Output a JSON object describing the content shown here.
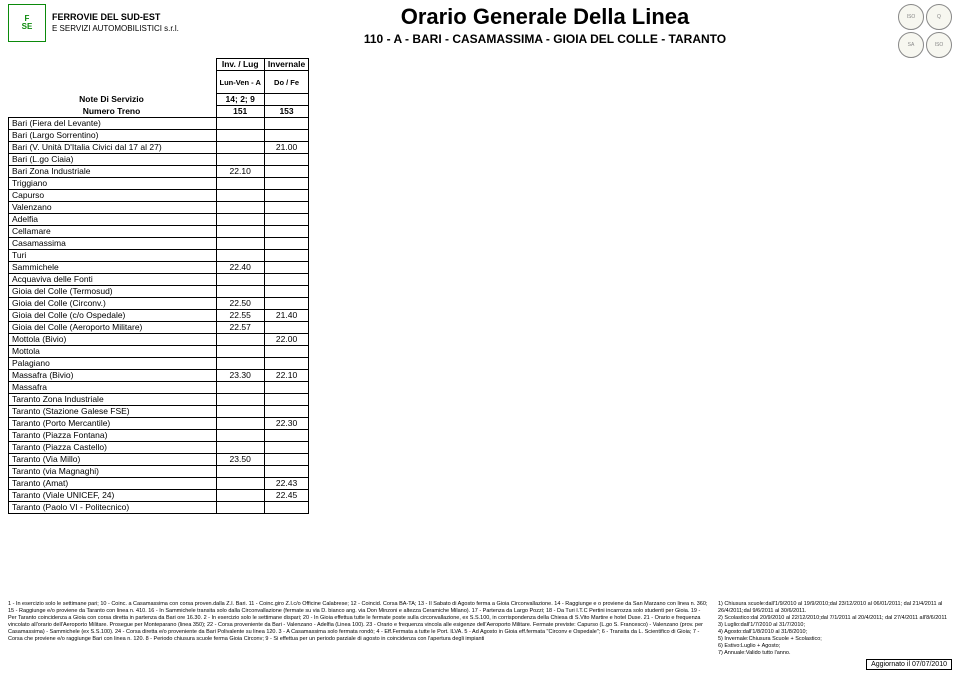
{
  "brand": {
    "name_line1": "FERROVIE DEL SUD-EST",
    "name_line2": "E SERVIZI AUTOMOBILISTICI s.r.l.",
    "badge_top": "F",
    "badge_bottom": "SE"
  },
  "title": {
    "main": "Orario Generale Della Linea",
    "sub": "110 - A - BARI - CASAMASSIMA - GIOIA DEL COLLE - TARANTO"
  },
  "header_rows": {
    "row1": {
      "left": "",
      "c1": "Inv. / Lug",
      "c2": "Invernale"
    },
    "row2": {
      "left": "",
      "c1": "Lun-Ven - A",
      "c2": "Do / Fe"
    },
    "row3": {
      "left": "Note Di Servizio",
      "c1": "14; 2; 9",
      "c2": ""
    },
    "row4": {
      "left": "Numero Treno",
      "c1": "151",
      "c2": "153"
    }
  },
  "stops": [
    {
      "name": "Bari  (Fiera del Levante)",
      "t1": "",
      "t2": ""
    },
    {
      "name": "Bari  (Largo Sorrentino)",
      "t1": "",
      "t2": ""
    },
    {
      "name": "Bari  (V. Unità D'Italia Civici dal 17 al 27)",
      "t1": "",
      "t2": "21.00"
    },
    {
      "name": "Bari  (L.go Ciaia)",
      "t1": "",
      "t2": ""
    },
    {
      "name": "Bari  Zona Industriale",
      "t1": "22.10",
      "t2": ""
    },
    {
      "name": "Triggiano",
      "t1": "",
      "t2": ""
    },
    {
      "name": "Capurso",
      "t1": "",
      "t2": ""
    },
    {
      "name": "Valenzano",
      "t1": "",
      "t2": ""
    },
    {
      "name": "Adelfia",
      "t1": "",
      "t2": ""
    },
    {
      "name": "Cellamare",
      "t1": "",
      "t2": ""
    },
    {
      "name": "Casamassima",
      "t1": "",
      "t2": ""
    },
    {
      "name": "Turi",
      "t1": "",
      "t2": ""
    },
    {
      "name": "Sammichele",
      "t1": "22.40",
      "t2": ""
    },
    {
      "name": "Acquaviva delle Fonti",
      "t1": "",
      "t2": ""
    },
    {
      "name": "Gioia del Colle  (Termosud)",
      "t1": "",
      "t2": ""
    },
    {
      "name": "Gioia del Colle  (Circonv.)",
      "t1": "22.50",
      "t2": ""
    },
    {
      "name": "Gioia del Colle  (c/o Ospedale)",
      "t1": "22.55",
      "t2": "21.40"
    },
    {
      "name": "Gioia del Colle  (Aeroporto Militare)",
      "t1": "22.57",
      "t2": ""
    },
    {
      "name": "Mottola  (Bivio)",
      "t1": "",
      "t2": "22.00"
    },
    {
      "name": "Mottola",
      "t1": "",
      "t2": ""
    },
    {
      "name": "Palagiano",
      "t1": "",
      "t2": ""
    },
    {
      "name": "Massafra  (Bivio)",
      "t1": "23.30",
      "t2": "22.10"
    },
    {
      "name": "Massafra",
      "t1": "",
      "t2": ""
    },
    {
      "name": "Taranto Zona Industriale",
      "t1": "",
      "t2": ""
    },
    {
      "name": "Taranto  (Stazione Galese FSE)",
      "t1": "",
      "t2": ""
    },
    {
      "name": "Taranto  (Porto Mercantile)",
      "t1": "",
      "t2": "22.30"
    },
    {
      "name": "Taranto  (Piazza Fontana)",
      "t1": "",
      "t2": ""
    },
    {
      "name": "Taranto  (Piazza Castello)",
      "t1": "",
      "t2": ""
    },
    {
      "name": "Taranto  (Via Millo)",
      "t1": "23.50",
      "t2": ""
    },
    {
      "name": "Taranto  (via Magnaghi)",
      "t1": "",
      "t2": ""
    },
    {
      "name": "Taranto  (Amat)",
      "t1": "",
      "t2": "22.43"
    },
    {
      "name": "Taranto  (Viale UNICEF, 24)",
      "t1": "",
      "t2": "22.45"
    },
    {
      "name": "Taranto  (Paolo VI - Politecnico)",
      "t1": "",
      "t2": ""
    }
  ],
  "footnotes_a": "1   - In esercizio solo le settimane pari; 10   - Coinc. a Casamassima con corsa proven.dalla Z.I. Bari. 11   - Coinc.giro Z.I.c/o Officine Calabrese; 12   - Coincid. Corsa BA-TA; 13   - Il Sabato di Agosto ferma a Gioia Circonvallazione. 14   - Raggiunge e o proviene da San Marzano con linea n. 360; 15   - Raggiunge e/o proviene da Taranto con linea n. 410. 16   - In Sammichele transita solo dalla Circonvallazione (fermate su via D. bianco ang. via Don Minzoni e altezza Ceramiche Milano). 17   - Partenza da Largo Pozzi; 18   - Da Turi I.T.C Pertini incarrozza solo studenti per Gioia. 19   - Per Taranto coincidenza a Gioia con corsa diretta in partenza da Bari ore 16.30. 2   - In esercizio solo le settimane dispari; 20   - In Gioia effettua tutte le fermate poste sulla circonvallazione, ex S.S.100, in corrispondenza della Chiesa di S.Vito Martire e hotel Duse. 21   - Orario e frequenza vincolato all'orario dell'Aeroporto Militare. Prosegue per Monteparano (linea 350); 22   - Corsa proveniente da Bari - Valenzano - Adelfia (Linea 100). 23   - Orario e frequenza vincola alle esigenze dell'Aeroporto Militare. Fermate previste: Capurso (L.go S. Francesco) - Valenzano (prov. per Casamassima) - Sammichele (ex S.S.100). 24   - Corsa diretta e/o proveniente da Bari Polivalente su linea 120. 3   - A Casamassima solo fermata rondò; 4   - Eff.Fermata a tutte le Port. ILVA. 5   - Ad Agosto in Gioia eff.fermata \"Circonv e Ospedale\"; 6   - Transita da L. Scientifico di Gioia; 7   - Corsa che proviene e/o raggiunge Bari con linea n. 120. 8   - Periodo chiusura scuole ferma Gioia Circonv; 9   - Si effettua per un periodo parziale di agosto in coincidenza con l'apertura degli impianti",
  "footnotes_b": "1) Chiusura scuole:dall'1/9/2010 al 19/9/2010;dal 23/12/2010 al 06/01/2011; dal 21/4/2011 al 26/4/2011;dal 9/6/2011 al 30/6/2011.\n2) Scolastico:dal 20/9/2010 al 22/12/2010;dal 7/1/2011 al 20/4/2011; dal 27/4/2011 all'8/6/2011\n3) Luglio:dall'1/7/2010 al 31/7/2010;\n4) Agosto:dall'1/8/2010 al 31/8/2010;\n5) Invernale:Chiusura Scuole + Scolastico;\n6) Estivo:Luglio + Agosto;\n7) Annuale:Valido tutto l'anno.",
  "updated": "Aggiornato il 07/07/2010",
  "cert_labels": [
    "ISO",
    "Q",
    "SA",
    "ISO"
  ]
}
